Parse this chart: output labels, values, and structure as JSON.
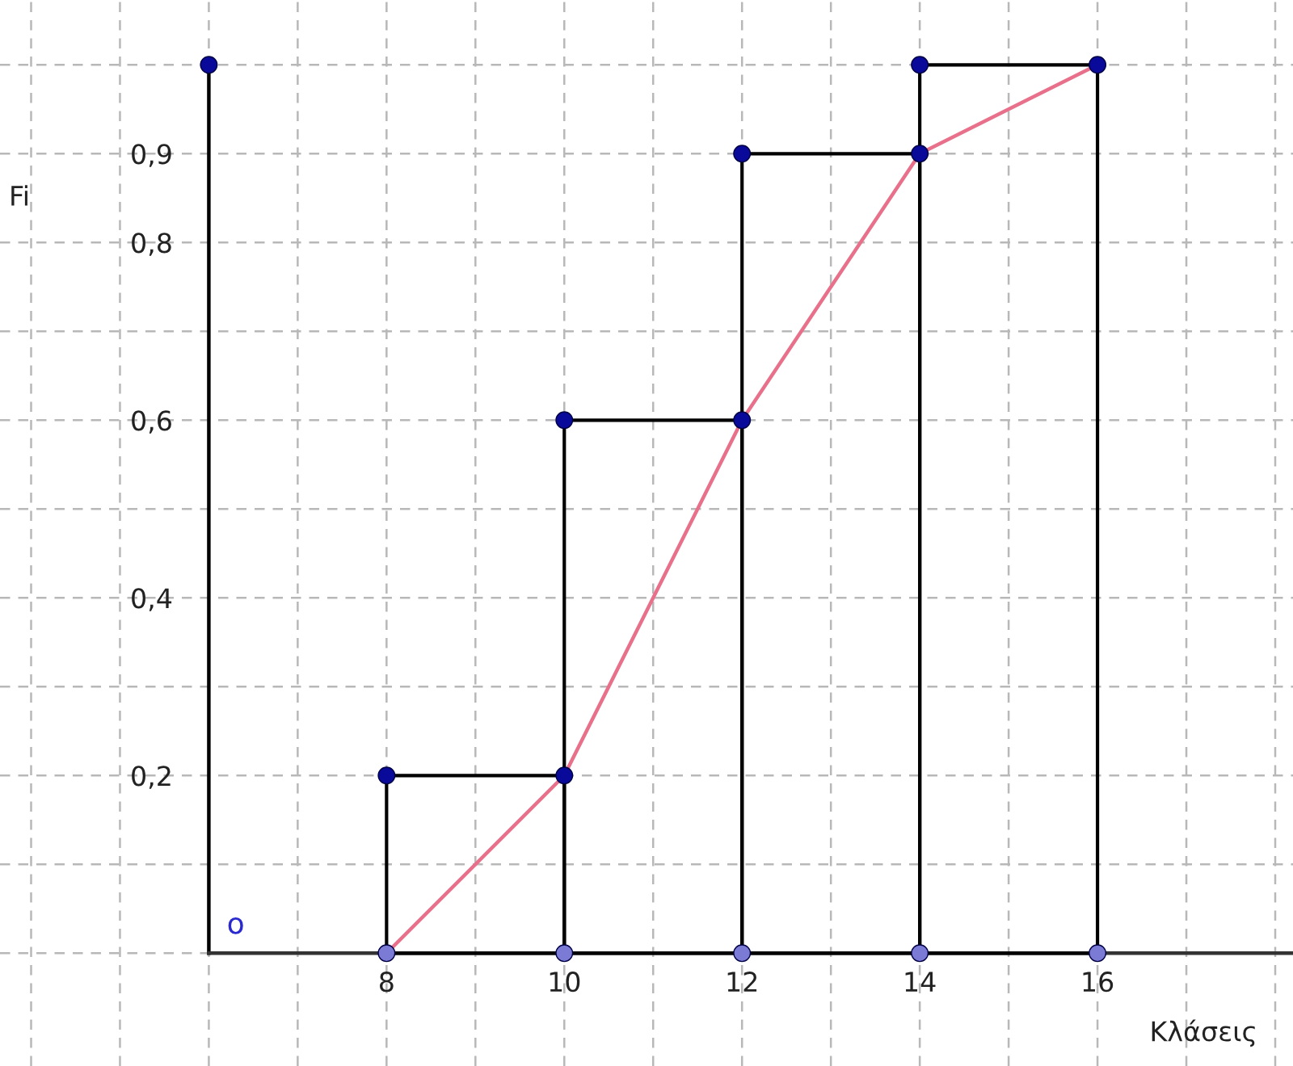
{
  "chart_data": {
    "type": "histogram",
    "xlabel": "Κλάσεις",
    "ylabel": "Fi",
    "annotations": [
      "o"
    ],
    "series": [
      {
        "bins": [
          8,
          10,
          12,
          14,
          16
        ],
        "values": [
          0.2,
          0.6,
          0.9,
          1.0
        ],
        "color": "#000000"
      },
      {
        "type": "line",
        "x": [
          8,
          10,
          12,
          14,
          16
        ],
        "values": [
          0,
          0.2,
          0.6,
          0.9,
          1.0
        ],
        "color": "#e8708a"
      },
      {
        "type": "scatter",
        "x": [
          6,
          8,
          10,
          10,
          12,
          12,
          14,
          14,
          16
        ],
        "values": [
          1,
          0.2,
          0.2,
          0.6,
          0.6,
          0.9,
          0.9,
          1,
          1
        ],
        "color": "#0a0a9a"
      },
      {
        "type": "scatter",
        "x": [
          8,
          10,
          12,
          14,
          16
        ],
        "values": [
          0,
          0,
          0,
          0,
          0
        ],
        "color": "#7b7bd6"
      }
    ],
    "xlim": [
      3.65,
      18.2
    ],
    "ylim": [
      -0.127,
      1.073
    ],
    "xticks": [
      {
        "value": 6,
        "label": null
      },
      {
        "value": 4,
        "label": null
      },
      {
        "value": 5,
        "label": null
      },
      {
        "value": 7,
        "label": null
      },
      8,
      {
        "value": 9,
        "label": null
      },
      10,
      {
        "value": 11,
        "label": null
      },
      12,
      {
        "value": 13,
        "label": null
      },
      14,
      {
        "value": 15,
        "label": null
      },
      16,
      {
        "value": 17,
        "label": null
      },
      {
        "value": 18,
        "label": null
      }
    ],
    "yticks": [
      {
        "value": 0,
        "label": null
      },
      {
        "value": 0.1,
        "label": null
      },
      {
        "value": 0.2,
        "label": "0,2"
      },
      {
        "value": 0.3,
        "label": null
      },
      {
        "value": 0.4,
        "label": "0,4"
      },
      {
        "value": 0.5,
        "label": null
      },
      {
        "value": 0.6,
        "label": "0,6"
      },
      {
        "value": 0.7,
        "label": null
      },
      {
        "value": 0.8,
        "label": "0,8"
      },
      {
        "value": 0.9,
        "label": "0,9"
      },
      {
        "value": 1,
        "label": null
      }
    ],
    "grid": true
  }
}
